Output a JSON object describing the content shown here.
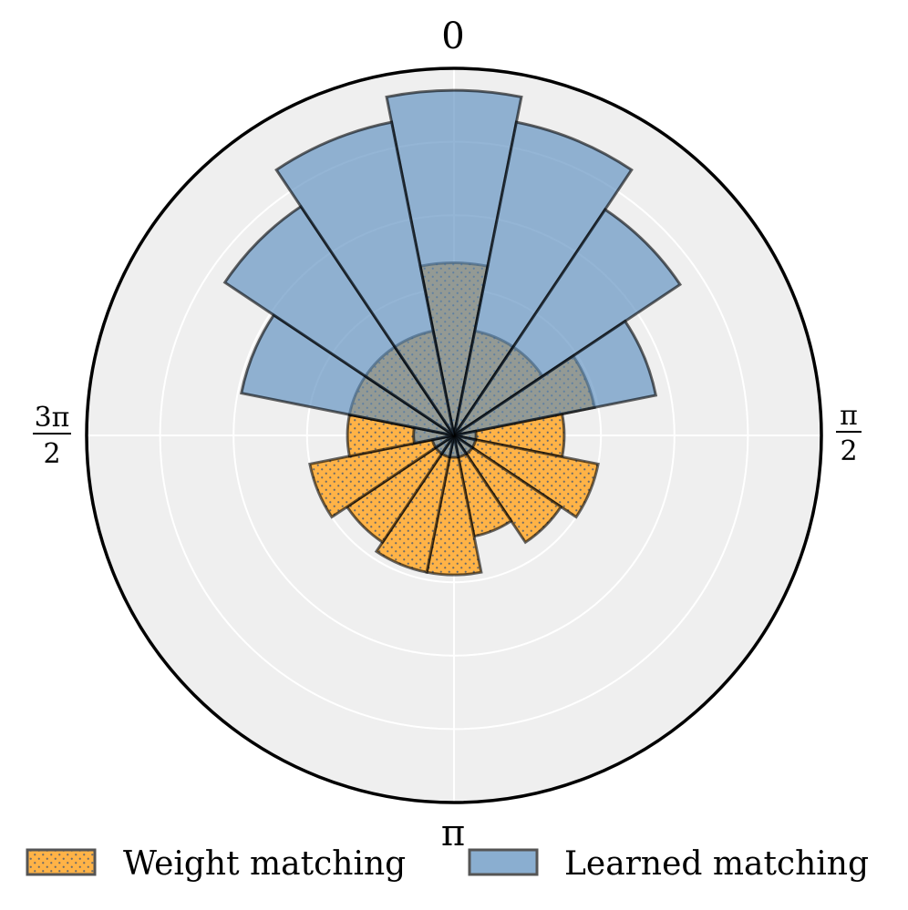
{
  "chart_data": {
    "type": "polar-bar",
    "theta_direction": "clockwise",
    "theta_zero": "top",
    "bin_count": 16,
    "bin_width_rad": 0.3927,
    "theta_tick_labels": {
      "top": "0",
      "right": {
        "numerator": "π",
        "denominator": "2"
      },
      "bottom": "π",
      "left": {
        "numerator": "3π",
        "denominator": "2"
      }
    },
    "rlim": [
      0,
      1.0
    ],
    "r_grid": [
      0.2,
      0.4,
      0.6,
      0.8
    ],
    "grid": true,
    "series": [
      {
        "name": "Weight matching",
        "color": "#ffb347",
        "hatch": "dots",
        "bins_center_deg": [
          0,
          22.5,
          45,
          67.5,
          90,
          112.5,
          135,
          157.5,
          180,
          202.5,
          225,
          247.5,
          270,
          292.5,
          315,
          337.5
        ],
        "values": [
          0.47,
          0.29,
          0.29,
          0.39,
          0.3,
          0.4,
          0.35,
          0.28,
          0.38,
          0.38,
          0.35,
          0.4,
          0.29,
          0.29,
          0.29,
          0.29
        ]
      },
      {
        "name": "Learned matching",
        "color": "#5b8dbe",
        "hatch": "none",
        "bins_center_deg": [
          0,
          22.5,
          45,
          67.5,
          90,
          112.5,
          135,
          157.5,
          180,
          202.5,
          225,
          247.5,
          270,
          292.5,
          315,
          337.5
        ],
        "values": [
          0.94,
          0.87,
          0.74,
          0.56,
          0.06,
          0.06,
          0.06,
          0.06,
          0.06,
          0.06,
          0.06,
          0.06,
          0.11,
          0.59,
          0.75,
          0.87
        ]
      }
    ],
    "legend": {
      "placement": "bottom",
      "entries": [
        "Weight matching",
        "Learned matching"
      ]
    }
  }
}
